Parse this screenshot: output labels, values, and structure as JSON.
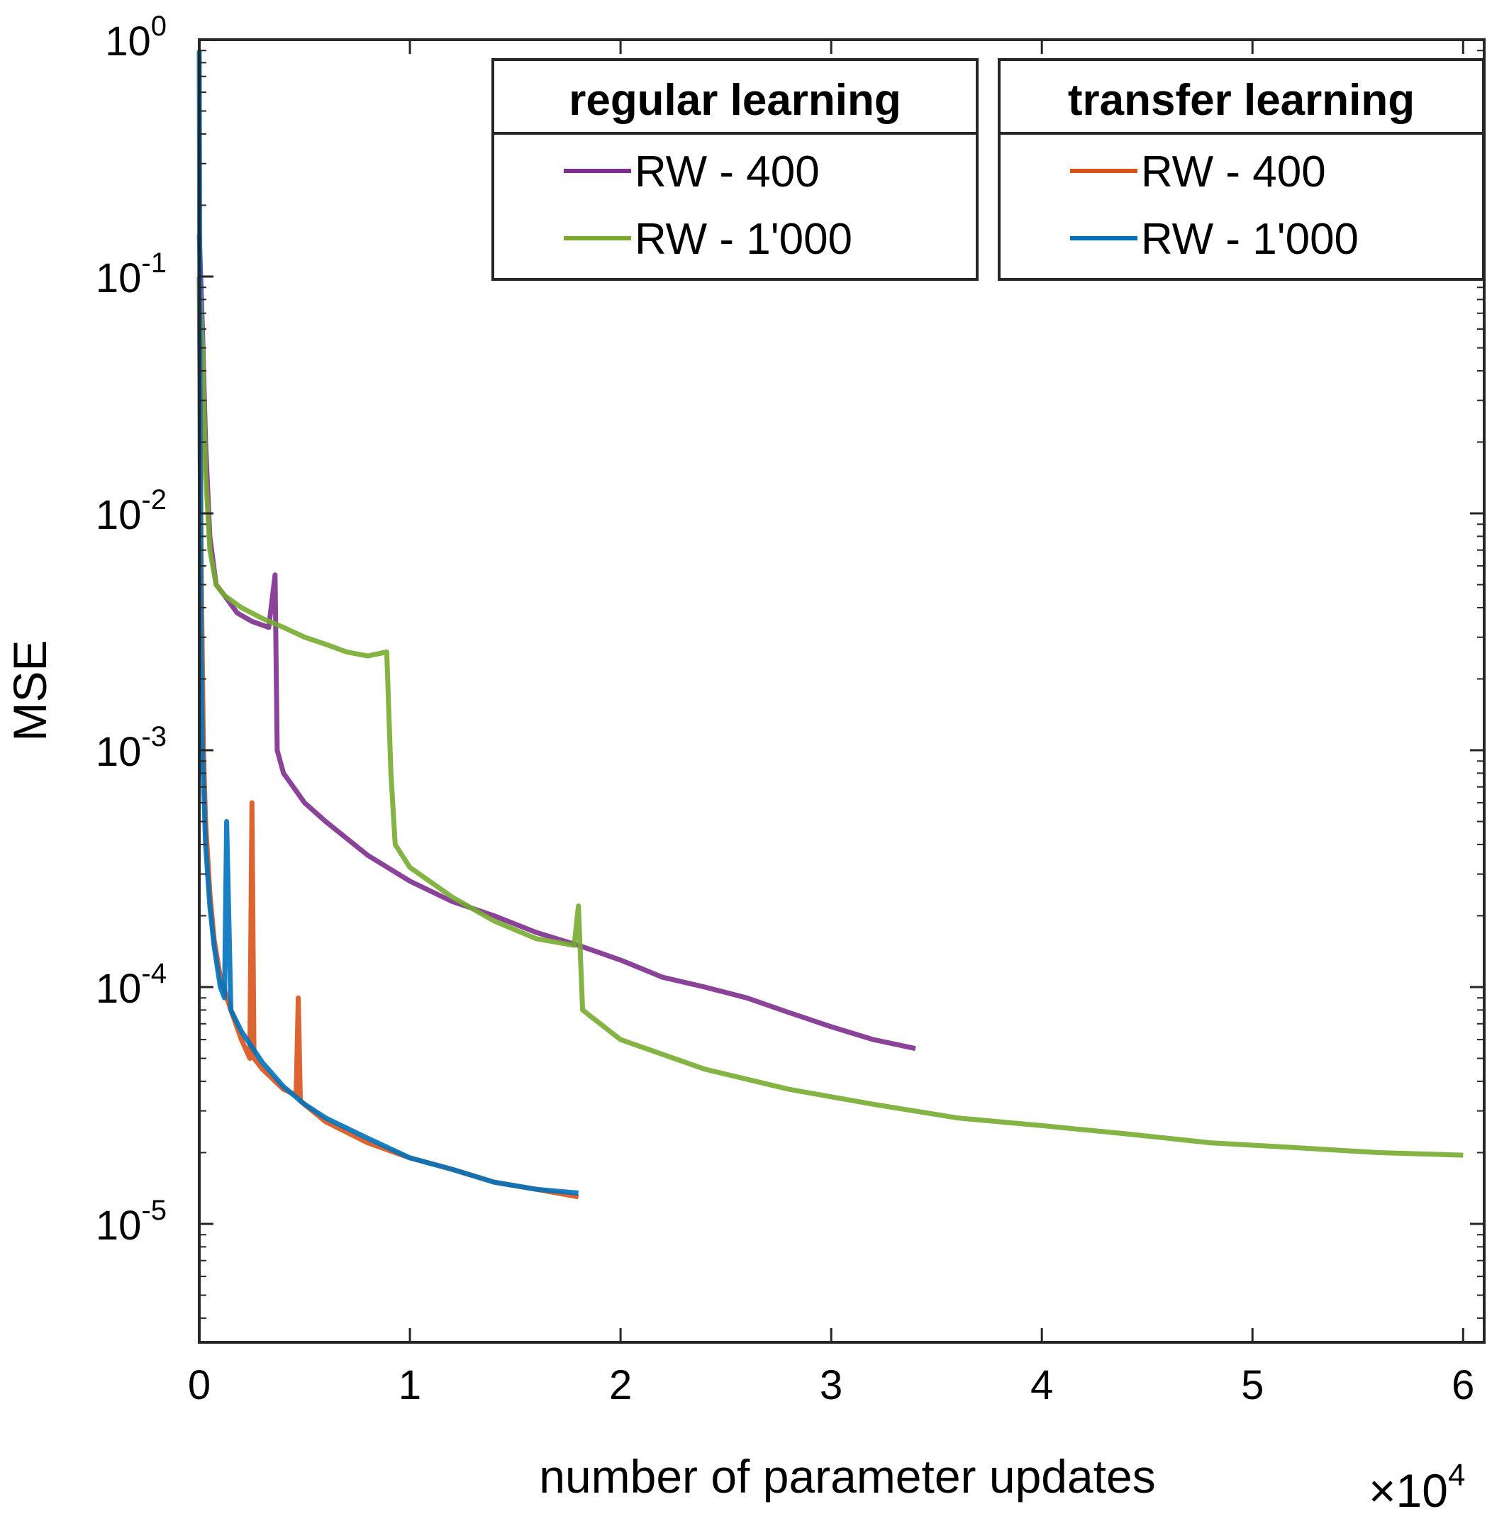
{
  "chart_data": {
    "type": "line",
    "xlabel": "number of parameter updates",
    "ylabel": "MSE",
    "x_multiplier_label": "×10",
    "x_multiplier_exp": "4",
    "xlim": [
      0,
      61000
    ],
    "ylim_log10": [
      -5.5,
      0
    ],
    "yscale": "log",
    "grid": false,
    "xticks": [
      {
        "value": 0,
        "label": "0"
      },
      {
        "value": 10000,
        "label": "1"
      },
      {
        "value": 20000,
        "label": "2"
      },
      {
        "value": 30000,
        "label": "3"
      },
      {
        "value": 40000,
        "label": "4"
      },
      {
        "value": 50000,
        "label": "5"
      },
      {
        "value": 60000,
        "label": "6"
      }
    ],
    "yticks": [
      {
        "exp": 0,
        "base": "10",
        "sup": "0"
      },
      {
        "exp": -1,
        "base": "10",
        "sup": "-1"
      },
      {
        "exp": -2,
        "base": "10",
        "sup": "-2"
      },
      {
        "exp": -3,
        "base": "10",
        "sup": "-3"
      },
      {
        "exp": -4,
        "base": "10",
        "sup": "-4"
      },
      {
        "exp": -5,
        "base": "10",
        "sup": "-5"
      }
    ],
    "legends": [
      {
        "title": "regular learning",
        "entries": [
          {
            "label": "RW - 400",
            "color": "#7E2F8E"
          },
          {
            "label": "RW - 1'000",
            "color": "#77AC30"
          }
        ]
      },
      {
        "title": "transfer learning",
        "entries": [
          {
            "label": "RW - 400",
            "color": "#D95319"
          },
          {
            "label": "RW - 1'000",
            "color": "#0072BD"
          }
        ]
      }
    ],
    "series": [
      {
        "name": "regular learning RW - 400",
        "color": "#7E2F8E",
        "x": [
          0,
          150,
          300,
          500,
          800,
          1200,
          1800,
          2500,
          3300,
          3600,
          3700,
          4000,
          5000,
          6000,
          8000,
          10000,
          12000,
          14000,
          16000,
          18000,
          20000,
          22000,
          24000,
          26000,
          28000,
          30000,
          32000,
          34000
        ],
        "y": [
          0.15,
          0.06,
          0.02,
          0.008,
          0.005,
          0.0045,
          0.0038,
          0.0035,
          0.0033,
          0.0055,
          0.001,
          0.0008,
          0.0006,
          0.0005,
          0.00036,
          0.00028,
          0.00023,
          0.0002,
          0.00017,
          0.00015,
          0.00013,
          0.00011,
          0.0001,
          9e-05,
          7.8e-05,
          6.8e-05,
          6e-05,
          5.5e-05
        ]
      },
      {
        "name": "regular learning RW - 1'000",
        "color": "#77AC30",
        "x": [
          0,
          150,
          300,
          500,
          800,
          1200,
          2000,
          3000,
          4000,
          5000,
          6000,
          7000,
          8000,
          8900,
          9100,
          9300,
          10000,
          12000,
          14000,
          16000,
          17800,
          18000,
          18200,
          20000,
          24000,
          28000,
          32000,
          36000,
          40000,
          44000,
          48000,
          52000,
          56000,
          60000
        ],
        "y": [
          0.1,
          0.05,
          0.015,
          0.007,
          0.005,
          0.0045,
          0.004,
          0.0036,
          0.0033,
          0.003,
          0.0028,
          0.0026,
          0.0025,
          0.0026,
          0.0008,
          0.0004,
          0.00032,
          0.00024,
          0.00019,
          0.00016,
          0.00015,
          0.00022,
          8e-05,
          6e-05,
          4.5e-05,
          3.7e-05,
          3.2e-05,
          2.8e-05,
          2.6e-05,
          2.4e-05,
          2.2e-05,
          2.1e-05,
          2e-05,
          1.95e-05
        ]
      },
      {
        "name": "transfer learning RW - 400",
        "color": "#D95319",
        "x": [
          0,
          100,
          200,
          300,
          500,
          700,
          1000,
          1500,
          2000,
          2400,
          2500,
          2600,
          3000,
          4000,
          4600,
          4700,
          4800,
          6000,
          8000,
          10000,
          12000,
          14000,
          16000,
          18000
        ],
        "y": [
          0.1,
          0.005,
          0.001,
          0.0005,
          0.00025,
          0.00016,
          0.00011,
          8e-05,
          6e-05,
          5e-05,
          0.0006,
          5e-05,
          4.5e-05,
          3.7e-05,
          3.5e-05,
          9e-05,
          3.3e-05,
          2.7e-05,
          2.2e-05,
          1.9e-05,
          1.7e-05,
          1.5e-05,
          1.4e-05,
          1.3e-05
        ]
      },
      {
        "name": "transfer learning RW - 1'000",
        "color": "#0072BD",
        "x": [
          0,
          40,
          80,
          150,
          300,
          500,
          700,
          1000,
          1200,
          1300,
          1500,
          2000,
          3000,
          4000,
          5000,
          6000,
          8000,
          10000,
          12000,
          14000,
          16000,
          18000
        ],
        "y": [
          0.9,
          0.02,
          0.003,
          0.001,
          0.0004,
          0.00022,
          0.00015,
          0.0001,
          9e-05,
          0.0005,
          8e-05,
          6.5e-05,
          4.8e-05,
          3.8e-05,
          3.2e-05,
          2.8e-05,
          2.3e-05,
          1.9e-05,
          1.7e-05,
          1.5e-05,
          1.4e-05,
          1.35e-05
        ]
      }
    ]
  }
}
